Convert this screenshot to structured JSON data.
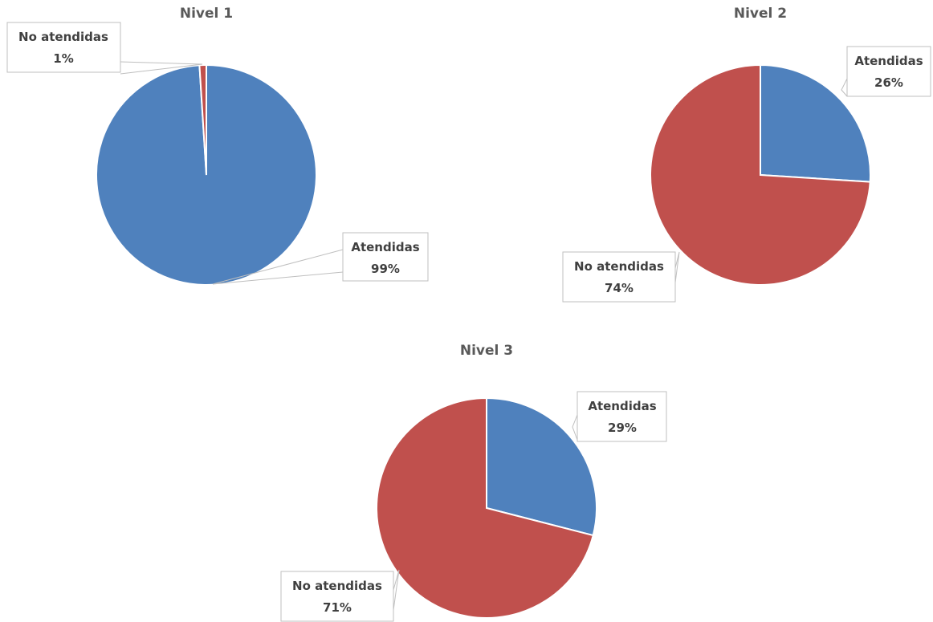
{
  "colors": {
    "atendidas": "#4F81BD",
    "no_atendidas": "#C0504D"
  },
  "chart_data": [
    {
      "type": "pie",
      "title": "Nivel 1",
      "slices": [
        {
          "label": "Atendidas",
          "value": 99,
          "display": "99%",
          "color": "#4F81BD"
        },
        {
          "label": "No atendidas",
          "value": 1,
          "display": "1%",
          "color": "#C0504D"
        }
      ]
    },
    {
      "type": "pie",
      "title": "Nivel 2",
      "slices": [
        {
          "label": "Atendidas",
          "value": 26,
          "display": "26%",
          "color": "#4F81BD"
        },
        {
          "label": "No atendidas",
          "value": 74,
          "display": "74%",
          "color": "#C0504D"
        }
      ]
    },
    {
      "type": "pie",
      "title": "Nivel 3",
      "slices": [
        {
          "label": "Atendidas",
          "value": 29,
          "display": "29%",
          "color": "#4F81BD"
        },
        {
          "label": "No atendidas",
          "value": 71,
          "display": "71%",
          "color": "#C0504D"
        }
      ]
    }
  ]
}
